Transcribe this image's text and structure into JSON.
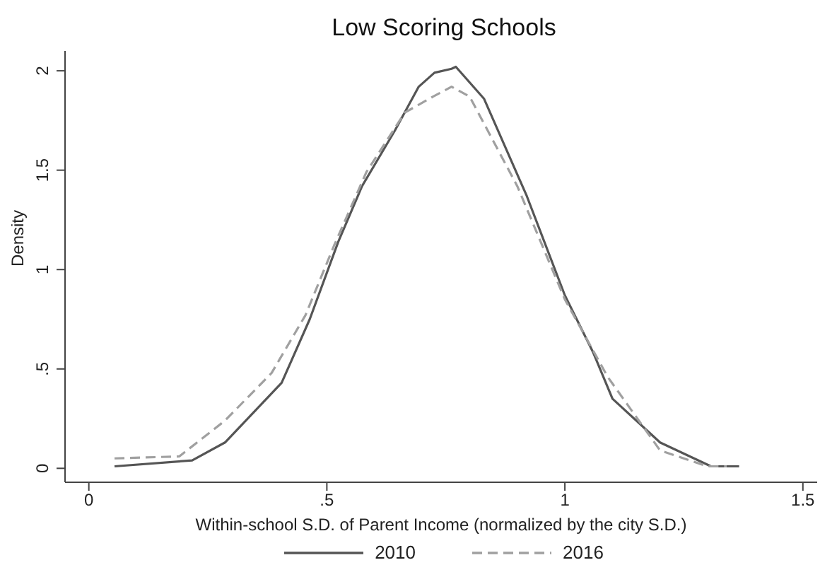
{
  "chart_data": {
    "type": "line",
    "title": "Low Scoring Schools",
    "xlabel": "Within-school S.D. of Parent Income (normalized by the city S.D.)",
    "ylabel": "Density",
    "xlim": [
      -0.05,
      1.53
    ],
    "ylim": [
      -0.07,
      2.1
    ],
    "xticks": [
      0,
      {
        "value": 0.5,
        "label": ".5"
      },
      1,
      1.5
    ],
    "yticks": [
      0,
      {
        "value": 0.5,
        "label": ".5"
      },
      1,
      1.5,
      2
    ],
    "legend": "bottom",
    "marker": "none",
    "series": [
      {
        "name": "2010",
        "color": "#555555",
        "line_style": "solid",
        "x": [
          0.054,
          0.217,
          0.286,
          0.405,
          0.464,
          0.524,
          0.574,
          0.643,
          0.693,
          0.726,
          0.762,
          0.771,
          0.83,
          0.92,
          1.0,
          1.06,
          1.1,
          1.2,
          1.307,
          1.366
        ],
        "values": [
          0.01,
          0.04,
          0.13,
          0.43,
          0.75,
          1.14,
          1.42,
          1.7,
          1.92,
          1.99,
          2.01,
          2.02,
          1.86,
          1.37,
          0.87,
          0.58,
          0.35,
          0.13,
          0.01,
          0.01
        ]
      },
      {
        "name": "2016",
        "color": "#a0a0a0",
        "line_style": "dashed",
        "x": [
          0.054,
          0.19,
          0.286,
          0.384,
          0.455,
          0.515,
          0.583,
          0.664,
          0.723,
          0.762,
          0.8,
          0.9,
          1.0,
          1.09,
          1.2,
          1.3,
          1.34
        ],
        "values": [
          0.05,
          0.06,
          0.24,
          0.48,
          0.77,
          1.12,
          1.49,
          1.79,
          1.87,
          1.92,
          1.87,
          1.42,
          0.85,
          0.46,
          0.09,
          0.01,
          0.01
        ]
      }
    ]
  }
}
